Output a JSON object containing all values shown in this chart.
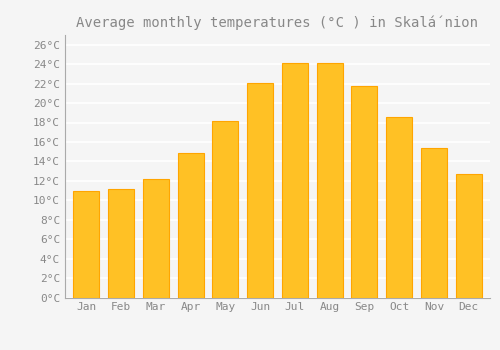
{
  "title": "Average monthly temperatures (°C ) in Skalá́nion",
  "months": [
    "Jan",
    "Feb",
    "Mar",
    "Apr",
    "May",
    "Jun",
    "Jul",
    "Aug",
    "Sep",
    "Oct",
    "Nov",
    "Dec"
  ],
  "values": [
    11.0,
    11.2,
    12.2,
    14.9,
    18.2,
    22.1,
    24.1,
    24.1,
    21.8,
    18.6,
    15.4,
    12.7
  ],
  "bar_color": "#FFC125",
  "bar_edge_color": "#FFA500",
  "background_color": "#F5F5F5",
  "plot_bg_color": "#F5F5F5",
  "grid_color": "#FFFFFF",
  "ylim": [
    0,
    27
  ],
  "yticks": [
    0,
    2,
    4,
    6,
    8,
    10,
    12,
    14,
    16,
    18,
    20,
    22,
    24,
    26
  ],
  "ytick_labels": [
    "0°C",
    "2°C",
    "4°C",
    "6°C",
    "8°C",
    "10°C",
    "12°C",
    "14°C",
    "16°C",
    "18°C",
    "20°C",
    "22°C",
    "24°C",
    "26°C"
  ],
  "title_fontsize": 10,
  "tick_fontsize": 8,
  "title_color": "#888888",
  "tick_label_color": "#888888",
  "bar_width": 0.75,
  "spine_color": "#AAAAAA"
}
